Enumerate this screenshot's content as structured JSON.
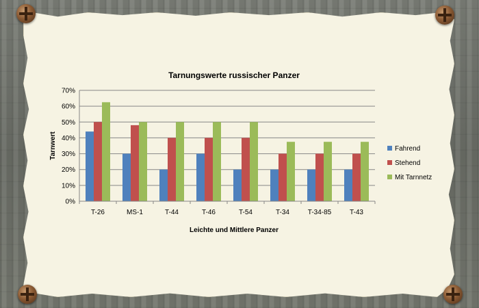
{
  "colors": {
    "fahrend": "#4f81bd",
    "stehend": "#c0504d",
    "mit_tarnnetz": "#9bbb59",
    "grid": "#868686",
    "paper": "#f6f3e3"
  },
  "icons": [
    "nail-icon"
  ],
  "chart_data": {
    "type": "bar",
    "title": "Tarnungswerte russischer Panzer",
    "xlabel": "Leichte und Mittlere Panzer",
    "ylabel": "Tarnwert",
    "categories": [
      "T-26",
      "MS-1",
      "T-44",
      "T-46",
      "T-54",
      "T-34",
      "T-34-85",
      "T-43"
    ],
    "ylim": [
      0,
      0.7
    ],
    "yticks": [
      "0%",
      "10%",
      "20%",
      "30%",
      "40%",
      "50%",
      "60%",
      "70%"
    ],
    "grid": true,
    "legend_position": "right",
    "series": [
      {
        "name": "Fahrend",
        "color": "#4f81bd",
        "values": [
          0.44,
          0.3,
          0.2,
          0.3,
          0.2,
          0.2,
          0.2,
          0.2
        ]
      },
      {
        "name": "Stehend",
        "color": "#c0504d",
        "values": [
          0.5,
          0.48,
          0.4,
          0.4,
          0.4,
          0.3,
          0.3,
          0.3
        ]
      },
      {
        "name": "Mit Tarnnetz",
        "color": "#9bbb59",
        "values": [
          0.625,
          0.5,
          0.5,
          0.5,
          0.5,
          0.375,
          0.375,
          0.375
        ]
      }
    ]
  }
}
